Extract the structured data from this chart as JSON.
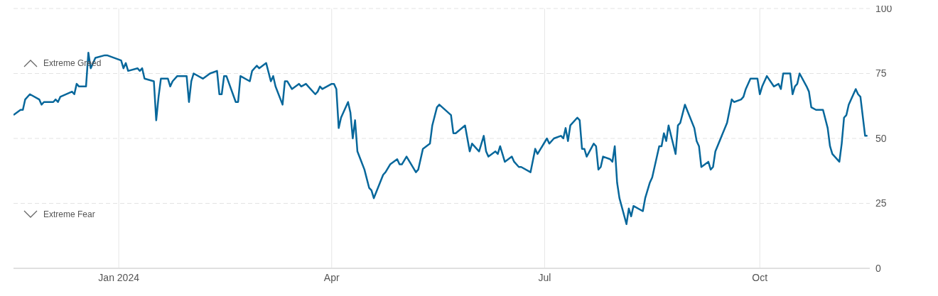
{
  "chart_data": {
    "type": "line",
    "annotations": [
      "Extreme Greed",
      "Extreme Fear"
    ],
    "x": [
      "2023-11-17",
      "2023-11-20",
      "2023-11-21",
      "2023-11-22",
      "2023-11-24",
      "2023-11-28",
      "2023-11-29",
      "2023-11-30",
      "2023-12-04",
      "2023-12-05",
      "2023-12-06",
      "2023-12-07",
      "2023-12-12",
      "2023-12-13",
      "2023-12-14",
      "2023-12-15",
      "2023-12-18",
      "2023-12-19",
      "2023-12-20",
      "2023-12-22",
      "2023-12-26",
      "2023-12-27",
      "2024-01-02",
      "2024-01-03",
      "2024-01-04",
      "2024-01-05",
      "2024-01-09",
      "2024-01-10",
      "2024-01-11",
      "2024-01-12",
      "2024-01-16",
      "2024-01-17",
      "2024-01-18",
      "2024-01-19",
      "2024-01-22",
      "2024-01-23",
      "2024-01-24",
      "2024-01-26",
      "2024-01-30",
      "2024-01-31",
      "2024-02-01",
      "2024-02-02",
      "2024-02-06",
      "2024-02-09",
      "2024-02-12",
      "2024-02-13",
      "2024-02-14",
      "2024-02-15",
      "2024-02-16",
      "2024-02-20",
      "2024-02-21",
      "2024-02-22",
      "2024-02-26",
      "2024-02-27",
      "2024-02-29",
      "2024-03-01",
      "2024-03-04",
      "2024-03-06",
      "2024-03-07",
      "2024-03-08",
      "2024-03-11",
      "2024-03-12",
      "2024-03-13",
      "2024-03-15",
      "2024-03-18",
      "2024-03-19",
      "2024-03-21",
      "2024-03-22",
      "2024-03-25",
      "2024-03-26",
      "2024-03-27",
      "2024-03-28",
      "2024-04-01",
      "2024-04-02",
      "2024-04-03",
      "2024-04-04",
      "2024-04-05",
      "2024-04-08",
      "2024-04-09",
      "2024-04-10",
      "2024-04-11",
      "2024-04-12",
      "2024-04-15",
      "2024-04-17",
      "2024-04-18",
      "2024-04-19",
      "2024-04-23",
      "2024-04-24",
      "2024-04-26",
      "2024-04-29",
      "2024-04-30",
      "2024-05-01",
      "2024-05-03",
      "2024-05-07",
      "2024-05-08",
      "2024-05-10",
      "2024-05-13",
      "2024-05-14",
      "2024-05-16",
      "2024-05-17",
      "2024-05-22",
      "2024-05-23",
      "2024-05-24",
      "2024-05-28",
      "2024-05-30",
      "2024-05-31",
      "2024-06-03",
      "2024-06-05",
      "2024-06-06",
      "2024-06-07",
      "2024-06-10",
      "2024-06-11",
      "2024-06-12",
      "2024-06-13",
      "2024-06-14",
      "2024-06-17",
      "2024-06-18",
      "2024-06-20",
      "2024-06-21",
      "2024-06-25",
      "2024-06-27",
      "2024-06-28",
      "2024-07-02",
      "2024-07-03",
      "2024-07-05",
      "2024-07-08",
      "2024-07-09",
      "2024-07-10",
      "2024-07-11",
      "2024-07-12",
      "2024-07-15",
      "2024-07-16",
      "2024-07-17",
      "2024-07-18",
      "2024-07-19",
      "2024-07-22",
      "2024-07-23",
      "2024-07-24",
      "2024-07-25",
      "2024-07-26",
      "2024-07-29",
      "2024-07-30",
      "2024-07-31",
      "2024-08-01",
      "2024-08-02",
      "2024-08-05",
      "2024-08-06",
      "2024-08-07",
      "2024-08-08",
      "2024-08-12",
      "2024-08-13",
      "2024-08-15",
      "2024-08-16",
      "2024-08-19",
      "2024-08-20",
      "2024-08-21",
      "2024-08-22",
      "2024-08-23",
      "2024-08-26",
      "2024-08-27",
      "2024-08-28",
      "2024-08-30",
      "2024-09-03",
      "2024-09-04",
      "2024-09-05",
      "2024-09-06",
      "2024-09-09",
      "2024-09-10",
      "2024-09-11",
      "2024-09-12",
      "2024-09-17",
      "2024-09-19",
      "2024-09-20",
      "2024-09-23",
      "2024-09-24",
      "2024-09-25",
      "2024-09-27",
      "2024-09-30",
      "2024-10-01",
      "2024-10-02",
      "2024-10-04",
      "2024-10-07",
      "2024-10-09",
      "2024-10-10",
      "2024-10-11",
      "2024-10-14",
      "2024-10-15",
      "2024-10-16",
      "2024-10-17",
      "2024-10-18",
      "2024-10-21",
      "2024-10-22",
      "2024-10-23",
      "2024-10-25",
      "2024-10-28",
      "2024-10-30",
      "2024-10-31",
      "2024-11-01",
      "2024-11-04",
      "2024-11-05",
      "2024-11-06",
      "2024-11-07",
      "2024-11-08",
      "2024-11-11",
      "2024-11-12",
      "2024-11-13",
      "2024-11-15",
      "2024-11-16"
    ],
    "series": [
      {
        "color": "#07679b",
        "values": [
          59,
          61,
          61,
          65,
          67,
          65,
          63,
          64,
          64,
          65,
          64,
          66,
          68,
          67,
          71,
          70,
          70,
          83,
          77,
          81,
          82,
          82,
          80,
          77,
          79,
          76,
          77,
          76,
          77,
          73,
          72,
          57,
          66,
          73,
          73,
          70,
          72,
          74,
          74,
          64,
          72,
          75,
          73,
          75,
          76,
          67,
          67,
          74,
          74,
          64,
          64,
          74,
          72,
          76,
          78,
          77,
          79,
          72,
          74,
          70,
          63,
          72,
          72,
          69,
          71,
          70,
          71,
          70,
          67,
          68,
          70,
          69,
          71,
          71,
          69,
          54,
          58,
          64,
          60,
          50,
          57,
          45,
          38,
          31,
          30,
          27,
          36,
          37,
          40,
          42,
          40,
          40,
          43,
          37,
          38,
          46,
          48,
          55,
          62,
          63,
          59,
          52,
          52,
          55,
          45,
          48,
          45,
          51,
          45,
          43,
          45,
          44,
          47,
          44,
          41,
          43,
          41,
          39,
          39,
          37,
          46,
          44,
          50,
          48,
          50,
          51,
          50,
          54,
          49,
          55,
          58,
          57,
          46,
          46,
          43,
          48,
          47,
          38,
          39,
          43,
          42,
          41,
          47,
          33,
          27,
          17,
          23,
          20,
          24,
          22,
          27,
          33,
          35,
          47,
          47,
          52,
          49,
          55,
          44,
          55,
          56,
          63,
          54,
          49,
          47,
          39,
          41,
          38,
          39,
          45,
          56,
          65,
          64,
          65,
          66,
          69,
          73,
          73,
          67,
          70,
          74,
          70,
          71,
          69,
          75,
          75,
          67,
          70,
          71,
          75,
          70,
          68,
          62,
          61,
          61,
          54,
          47,
          44,
          41,
          48,
          58,
          59,
          63,
          69,
          67,
          66,
          51,
          51
        ]
      }
    ],
    "xlim": [
      "2023-11-17",
      "2024-11-17"
    ],
    "xticks": [
      {
        "value": "2024-01-01",
        "label": "Jan 2024"
      },
      {
        "value": "2024-04-01",
        "label": "Apr"
      },
      {
        "value": "2024-07-01",
        "label": "Jul"
      },
      {
        "value": "2024-10-01",
        "label": "Oct"
      }
    ],
    "ylim": [
      0,
      100
    ],
    "yticks": [
      0,
      25,
      50,
      75,
      100
    ],
    "grid": true,
    "legend": false
  }
}
